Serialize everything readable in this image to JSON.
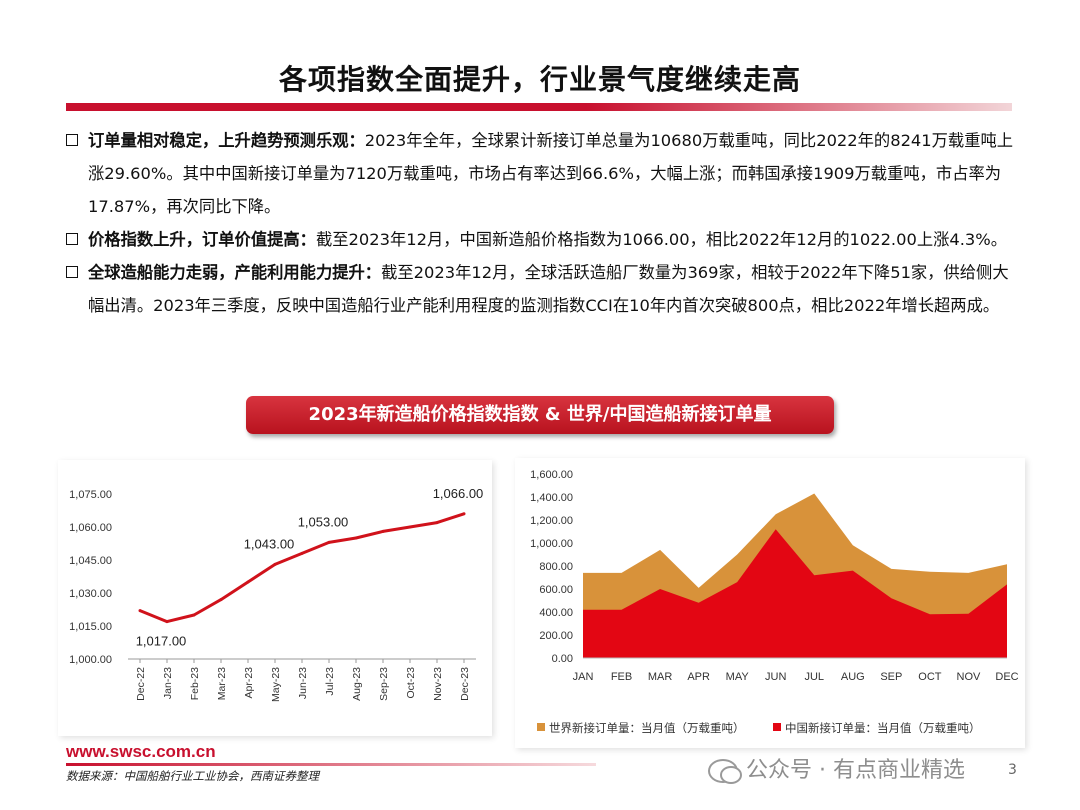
{
  "title": "各项指数全面提升，行业景气度继续走高",
  "bullets": [
    {
      "head": "订单量相对稳定，上升趋势预测乐观：",
      "text": "2023年全年，全球累计新接订单总量为10680万载重吨，同比2022年的8241万载重吨上涨29.60%。其中中国新接订单量为7120万载重吨，市场占有率达到66.6%，大幅上涨；而韩国承接1909万载重吨，市占率为17.87%，再次同比下降。"
    },
    {
      "head": "价格指数上升，订单价值提高：",
      "text": "截至2023年12月，中国新造船价格指数为1066.00，相比2022年12月的1022.00上涨4.3%。"
    },
    {
      "head": "全球造船能力走弱，产能利用能力提升：",
      "text": "截至2023年12月，全球活跃造船厂数量为369家，相较于2022年下降51家，供给侧大幅出清。2023年三季度，反映中国造船行业产能利用程度的监测指数CCI在10年内首次突破800点，相比2022年增长超两成。"
    }
  ],
  "banner": "2023年新造船价格指数指数 & 世界/中国造船新接订单量",
  "chart_data": [
    {
      "type": "line",
      "categories": [
        "Dec-22",
        "Jan-23",
        "Feb-23",
        "Mar-23",
        "Apr-23",
        "May-23",
        "Jun-23",
        "Jul-23",
        "Aug-23",
        "Sep-23",
        "Oct-23",
        "Nov-23",
        "Dec-23"
      ],
      "series": [
        {
          "values": [
            1022,
            1017,
            1020,
            1027,
            1035,
            1043,
            1048,
            1053,
            1055,
            1058,
            1060,
            1062,
            1066
          ]
        }
      ],
      "ylim": [
        1000,
        1075
      ],
      "yticks": [
        "1,000.00",
        "1,015.00",
        "1,030.00",
        "1,045.00",
        "1,060.00",
        "1,075.00"
      ],
      "annotations": [
        {
          "index": 1,
          "text": "1,017.00"
        },
        {
          "index": 5,
          "text": "1,043.00"
        },
        {
          "index": 7,
          "text": "1,053.00"
        },
        {
          "index": 12,
          "text": "1,066.00"
        }
      ],
      "color": "#d0121b"
    },
    {
      "type": "area",
      "categories": [
        "JAN",
        "FEB",
        "MAR",
        "APR",
        "MAY",
        "JUN",
        "JUL",
        "AUG",
        "SEP",
        "OCT",
        "NOV",
        "DEC"
      ],
      "series": [
        {
          "name": "世界新接订单量：当月值（万载重吨）",
          "color": "#d8923a",
          "values": [
            740,
            740,
            940,
            610,
            900,
            1250,
            1430,
            980,
            775,
            750,
            740,
            815
          ]
        },
        {
          "name": "中国新接订单量：当月值（万载重吨）",
          "color": "#e30613",
          "values": [
            420,
            420,
            600,
            480,
            660,
            1120,
            720,
            760,
            520,
            380,
            385,
            640
          ]
        }
      ],
      "ylim": [
        0,
        1600
      ],
      "yticks": [
        "0.00",
        "200.00",
        "400.00",
        "600.00",
        "800.00",
        "1,000.00",
        "1,200.00",
        "1,400.00",
        "1,600.00"
      ],
      "legend": "bottom"
    }
  ],
  "footer": {
    "url": "www.swsc.com.cn",
    "source": "数据来源：中国船舶行业工业协会，西南证券整理",
    "watermark": "公众号 · 有点商业精选",
    "page": "3"
  }
}
